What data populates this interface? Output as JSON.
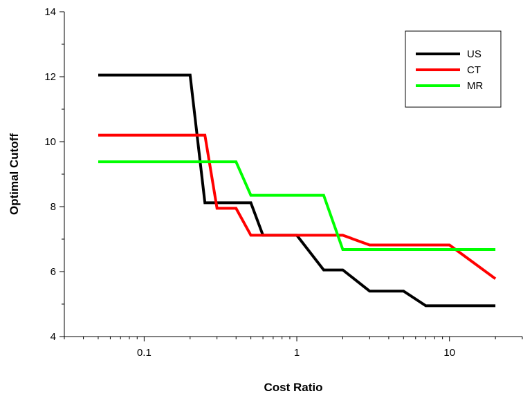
{
  "chart_data": {
    "type": "line",
    "title": "",
    "xlabel": "Cost Ratio",
    "ylabel": "Optimal Cutoff",
    "xscale": "log",
    "xlim": [
      0.03,
      30
    ],
    "ylim": [
      4,
      14
    ],
    "xticks": [
      0.1,
      1,
      10
    ],
    "xtick_labels": [
      "0.1",
      "1",
      "10"
    ],
    "yticks": [
      4,
      6,
      8,
      10,
      12,
      14
    ],
    "ytick_labels": [
      "4",
      "6",
      "8",
      "10",
      "12",
      "14"
    ],
    "grid": false,
    "legend_position": "top-right",
    "series": [
      {
        "name": "US",
        "color": "#000000",
        "points": [
          [
            0.05,
            12.05
          ],
          [
            0.2,
            12.05
          ],
          [
            0.25,
            8.12
          ],
          [
            0.5,
            8.12
          ],
          [
            0.6,
            7.12
          ],
          [
            1,
            7.12
          ],
          [
            1.5,
            6.05
          ],
          [
            2,
            6.05
          ],
          [
            3,
            5.4
          ],
          [
            5,
            5.4
          ],
          [
            7,
            4.95
          ],
          [
            20,
            4.95
          ]
        ]
      },
      {
        "name": "CT",
        "color": "#ff0000",
        "points": [
          [
            0.05,
            10.2
          ],
          [
            0.25,
            10.2
          ],
          [
            0.3,
            7.95
          ],
          [
            0.4,
            7.95
          ],
          [
            0.5,
            7.12
          ],
          [
            2,
            7.12
          ],
          [
            3,
            6.82
          ],
          [
            10,
            6.82
          ],
          [
            20,
            5.78
          ]
        ]
      },
      {
        "name": "MR",
        "color": "#00ff00",
        "points": [
          [
            0.05,
            9.38
          ],
          [
            0.4,
            9.38
          ],
          [
            0.5,
            8.35
          ],
          [
            1.5,
            8.35
          ],
          [
            2,
            6.68
          ],
          [
            20,
            6.68
          ]
        ]
      }
    ]
  }
}
